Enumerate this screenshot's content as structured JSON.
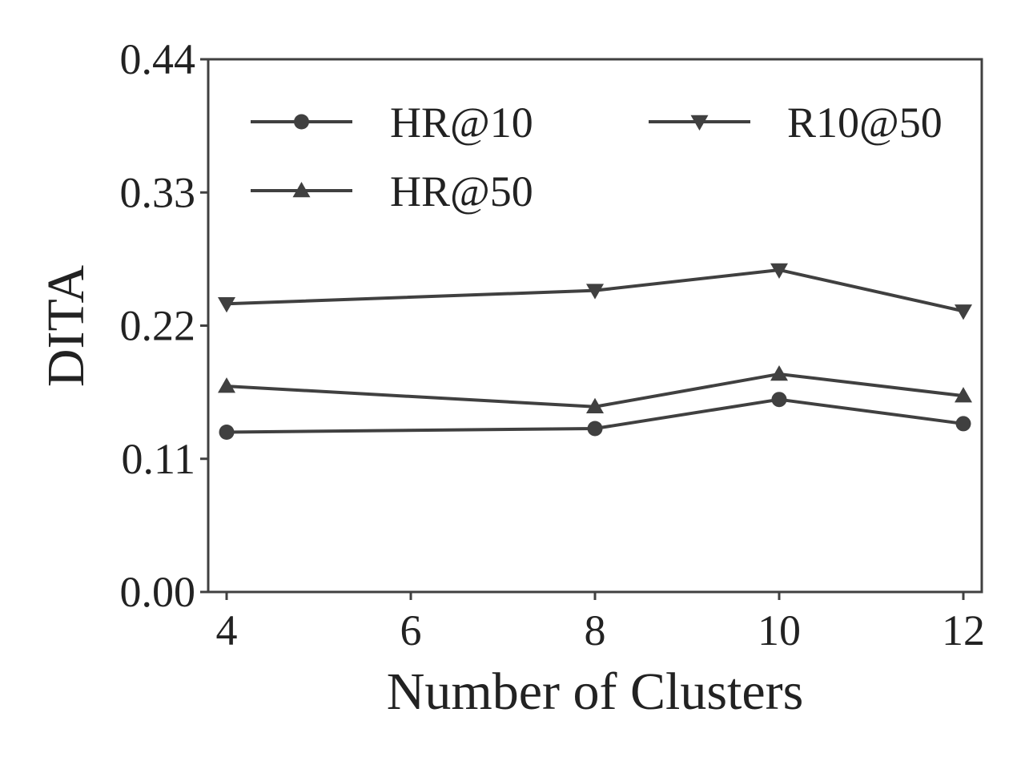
{
  "chart_data": {
    "type": "line",
    "xlabel": "Number of Clusters",
    "ylabel": "DITA",
    "xlim": [
      3.8,
      12.2
    ],
    "ylim": [
      0.0,
      0.44
    ],
    "xticks": [
      4,
      6,
      8,
      10,
      12
    ],
    "yticks": [
      "0.00",
      "0.11",
      "0.22",
      "0.33",
      "0.44"
    ],
    "grid": false,
    "legend_placement": "upper-left, two columns",
    "line_color": "#404040",
    "series": [
      {
        "name": "HR@10",
        "marker": "circle",
        "x": [
          4,
          8,
          10,
          12
        ],
        "values": [
          0.132,
          0.135,
          0.159,
          0.139
        ]
      },
      {
        "name": "HR@50",
        "marker": "triangle-up",
        "x": [
          4,
          8,
          10,
          12
        ],
        "values": [
          0.17,
          0.153,
          0.18,
          0.162
        ]
      },
      {
        "name": "R10@50",
        "marker": "triangle-down",
        "x": [
          4,
          8,
          10,
          12
        ],
        "values": [
          0.238,
          0.249,
          0.266,
          0.232
        ]
      }
    ]
  }
}
